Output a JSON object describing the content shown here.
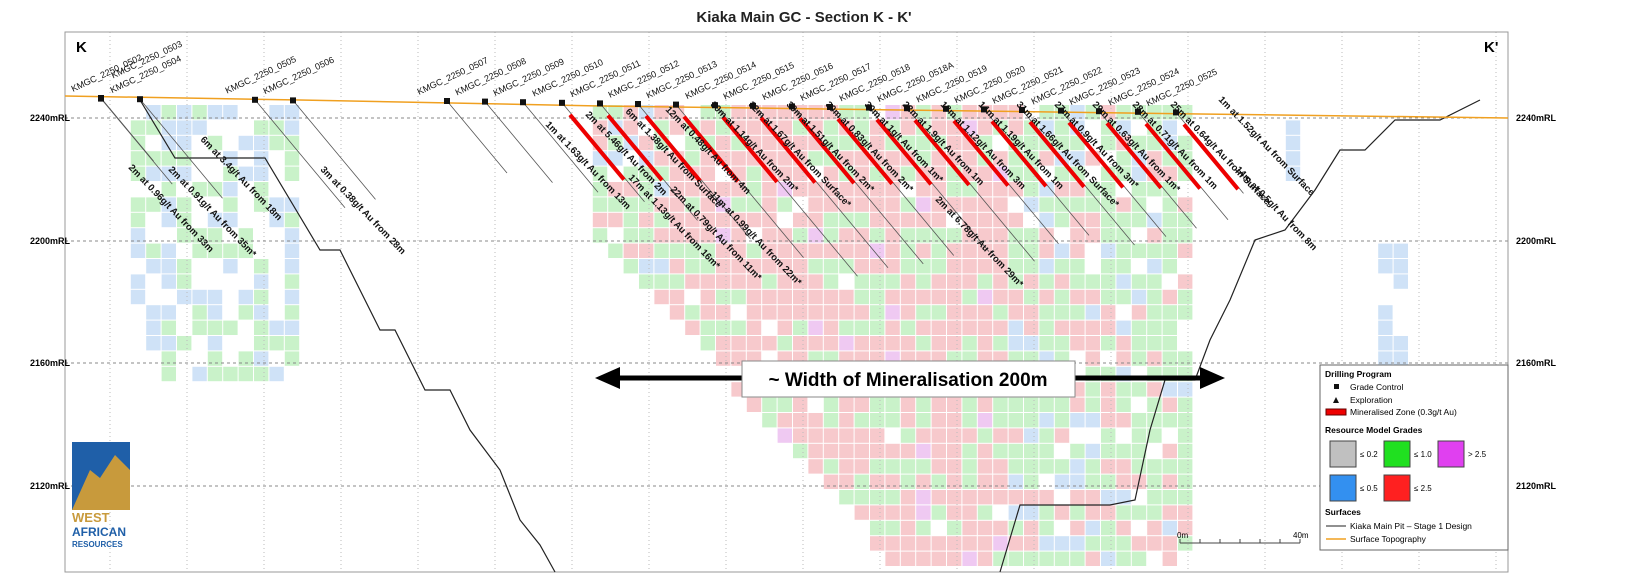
{
  "title": "Kiaka Main GC - Section K - K'",
  "section_labels": {
    "left": "K",
    "right": "K'"
  },
  "elevations": [
    "2240mRL",
    "2200mRL",
    "2160mRL",
    "2120mRL"
  ],
  "drill_holes": [
    "KMGC_2250_0502",
    "KMGC_2250_0503",
    "KMGC_2250_0504",
    "KMGC_2250_0505",
    "KMGC_2250_0506",
    "KMGC_2250_0507",
    "KMGC_2250_0508",
    "KMGC_2250_0509",
    "KMGC_2250_0510",
    "KMGC_2250_0511",
    "KMGC_2250_0512",
    "KMGC_2250_0513",
    "KMGC_2250_0514",
    "KMGC_2250_0515",
    "KMGC_2250_0516",
    "KMGC_2250_0517",
    "KMGC_2250_0518",
    "KMGC_2250_0518A",
    "KMGC_2250_0519",
    "KMGC_2250_0520",
    "KMGC_2250_0521",
    "KMGC_2250_0522",
    "KMGC_2250_0523",
    "KMGC_2250_0524",
    "KMGC_2250_0525"
  ],
  "intercepts": [
    "2m at 0.96g/t Au from 33m",
    "2m at 0.91g/t Au from 35m*",
    "6m at 3.4g/t Au from 18m",
    "3m at 0.38g/t Au from 28m",
    "1m at 1.63g/t Au from 13m",
    "2m at 5.46g/t Au from 2m",
    "17m at 1.13g/t Au from 16m*",
    "6m at 1.38g/t Au from Surface",
    "22m at 0.79g/t Au from 11m*",
    "12m at 0.48g/t Au from 4m",
    "11m at 0.99g/t Au from 22m*",
    "30m at 1.14g/t Au from 2m*",
    "32m at 1.67g/t Au from Surface*",
    "30m at 1.51g/t Au from 2m*",
    "30m at 0.83g/t Au from 2m*",
    "30m at 1g/t Au from 1m*",
    "22m at 1.9g/t Au from 1m",
    "2m at 6.78g/t Au from 29m*",
    "18m at 1.12g/t Au from 3m",
    "14m at 1.19g/t Au from 1m",
    "31m at 1.66g/t Au from Surface*",
    "27m at 0.9g/t Au from 3m*",
    "29m at 0.63g/t Au from 1m*",
    "28m at 0.71g/t Au from 1m",
    "25m at 0.64g/t Au from Surface",
    "1m at 1.52g/t Au from Surface",
    "14m at 0.5g/t Au from 8m"
  ],
  "annotation": "~ Width of Mineralisation 200m",
  "legend": {
    "drilling_title": "Drilling Program",
    "grade_control": "Grade Control",
    "exploration": "Exploration",
    "mineralised": "Mineralised Zone (0.3g/t Au)",
    "grades_title": "Resource Model Grades",
    "grades": [
      "≤ 0.2",
      "≤ 1.0",
      "> 2.5",
      "≤ 0.5",
      "≤ 2.5"
    ],
    "surfaces_title": "Surfaces",
    "pit": "Kiaka Main Pit – Stage 1 Design",
    "topo": "Surface Topography"
  },
  "scale": {
    "start": "0m",
    "end": "40m"
  },
  "logo": [
    "WEST",
    "AFRICAN",
    "RESOURCES"
  ]
}
